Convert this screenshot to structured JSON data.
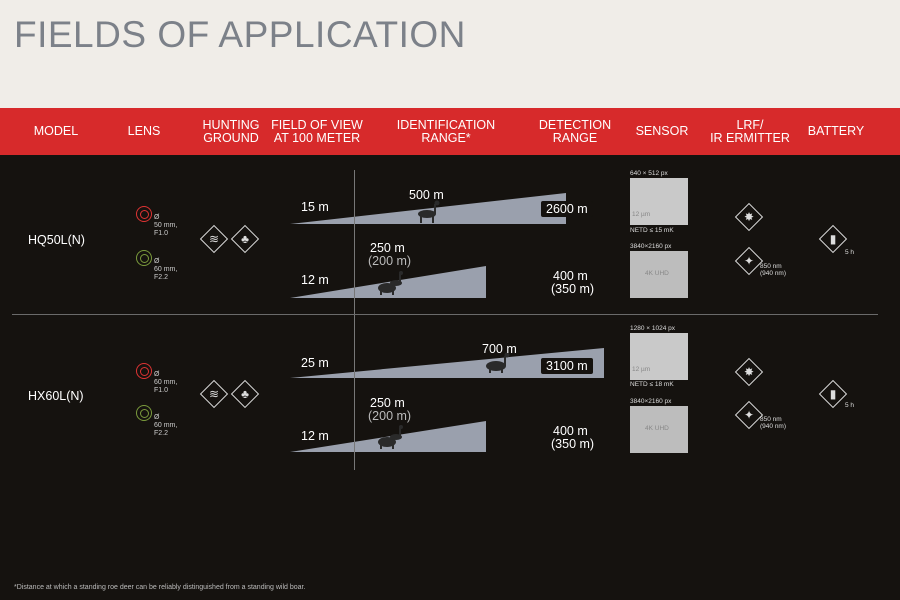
{
  "title": "FIELDS OF APPLICATION",
  "header": {
    "model": "MODEL",
    "lens": "LENS",
    "hunting": "HUNTING\nGROUND",
    "fov": "FIELD OF VIEW\nAT 100 METER",
    "ident": "IDENTIFICATION\nRANGE*",
    "detect": "DETECTION\nRANGE",
    "sensor": "SENSOR",
    "lrf": "LRF/\nIR ERMITTER",
    "battery": "BATTERY"
  },
  "models": [
    {
      "name": "HQ50L(N)",
      "lens": [
        {
          "tag": "thermal",
          "spec": "Ø\n50 mm,\nF1.0"
        },
        {
          "tag": "digital",
          "spec": "Ø\n60 mm,\nF2.2"
        }
      ],
      "fov": [
        "15 m",
        "12 m"
      ],
      "ident": [
        {
          "value": "500 m",
          "sub": ""
        },
        {
          "value": "250 m",
          "sub": "(200 m)"
        }
      ],
      "detect": [
        {
          "value": "2600 m",
          "sub": ""
        },
        {
          "value": "400 m",
          "sub": "(350 m)"
        }
      ],
      "sensor": [
        {
          "res": "640 × 512 px",
          "pitch": "12 µm",
          "netd": "NETD ≤ 15 mK"
        },
        {
          "res": "3840×2160 px",
          "label": "4K UHD"
        }
      ],
      "ir": "850 nm\n(940 nm)",
      "battery": "5 h"
    },
    {
      "name": "HX60L(N)",
      "lens": [
        {
          "tag": "thermal",
          "spec": "Ø\n60 mm,\nF1.0"
        },
        {
          "tag": "digital",
          "spec": "Ø\n60 mm,\nF2.2"
        }
      ],
      "fov": [
        "25 m",
        "12 m"
      ],
      "ident": [
        {
          "value": "700 m",
          "sub": ""
        },
        {
          "value": "250 m",
          "sub": "(200 m)"
        }
      ],
      "detect": [
        {
          "value": "3100 m",
          "sub": ""
        },
        {
          "value": "400 m",
          "sub": "(350 m)"
        }
      ],
      "sensor": [
        {
          "res": "1280 × 1024 px",
          "pitch": "12 µm",
          "netd": "NETD ≤ 18 mK"
        },
        {
          "res": "3840×2160 px",
          "label": "4K UHD"
        }
      ],
      "ir": "850 nm\n(940 nm)",
      "battery": "5 h"
    }
  ],
  "footnote": "*Distance at which a standing roe deer can be reliably distinguished from a standing wild boar.",
  "colors": {
    "header_red": "#d72a2b",
    "background": "#15120f",
    "title_gray": "#7c8189"
  },
  "icons": [
    "field-icon",
    "forest-icon",
    "laser-icon",
    "ir-torch-icon",
    "battery-icon",
    "roe-deer-icon",
    "wild-boar-icon"
  ]
}
